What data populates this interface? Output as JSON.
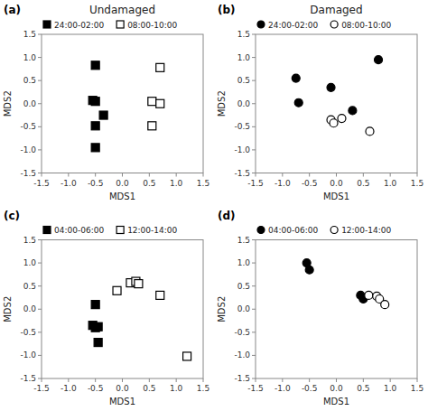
{
  "chart_data": [
    {
      "type": "scatter",
      "title": "Undamaged",
      "annotations": [
        "(a)"
      ],
      "xlabel": "MDS1",
      "ylabel": "MDS2",
      "xlim": [
        -1.5,
        1.5
      ],
      "ylim": [
        -1.5,
        1.5
      ],
      "xticks": [
        -1.5,
        {
          "value": -1.0,
          "label": "-1.0"
        },
        -0.5,
        {
          "value": 0.0,
          "label": "0.0"
        },
        0.5,
        {
          "value": 1.0,
          "label": "1.0"
        },
        1.5
      ],
      "yticks": [
        -1.5,
        {
          "value": -1.0,
          "label": "-1.0"
        },
        -0.5,
        {
          "value": 0.0,
          "label": "0.0"
        },
        0.5,
        {
          "value": 1.0,
          "label": "1.0"
        },
        1.5
      ],
      "grid": false,
      "legend": "top",
      "series": [
        {
          "name": "24:00-02:00",
          "color": "#000000",
          "marker": "square",
          "x": [
            -0.5,
            -0.55,
            -0.5,
            -0.35,
            -0.5,
            -0.5
          ],
          "values": [
            0.83,
            0.07,
            0.05,
            -0.25,
            -0.48,
            -0.95
          ]
        },
        {
          "name": "08:00-10:00",
          "color": "#ffffff",
          "marker": "square",
          "x": [
            0.7,
            0.55,
            0.7,
            0.55
          ],
          "values": [
            0.78,
            0.05,
            0.0,
            -0.48
          ]
        }
      ]
    },
    {
      "type": "scatter",
      "title": "Damaged",
      "annotations": [
        "(b)"
      ],
      "xlabel": "MDS1",
      "ylabel": "MDS2",
      "xlim": [
        -1.5,
        1.5
      ],
      "ylim": [
        -1.5,
        1.5
      ],
      "xticks": [
        -1.5,
        {
          "value": -1.0,
          "label": "-1.0"
        },
        -0.5,
        {
          "value": 0.0,
          "label": "0.0"
        },
        0.5,
        {
          "value": 1.0,
          "label": "1.0"
        },
        1.5
      ],
      "yticks": [
        -1.5,
        {
          "value": -1.0,
          "label": "-1.0"
        },
        -0.5,
        {
          "value": 0.0,
          "label": "0.0"
        },
        0.5,
        {
          "value": 1.0,
          "label": "1.0"
        },
        1.5
      ],
      "grid": false,
      "legend": "top",
      "series": [
        {
          "name": "24:00-02:00",
          "color": "#000000",
          "marker": "circle",
          "x": [
            -0.75,
            -0.7,
            -0.1,
            0.3,
            0.78
          ],
          "values": [
            0.55,
            0.02,
            0.35,
            -0.15,
            0.95
          ]
        },
        {
          "name": "08:00-10:00",
          "color": "#ffffff",
          "marker": "circle",
          "x": [
            -0.1,
            -0.05,
            0.1,
            0.62
          ],
          "values": [
            -0.35,
            -0.42,
            -0.32,
            -0.6
          ]
        }
      ]
    },
    {
      "type": "scatter",
      "annotations": [
        "(c)"
      ],
      "xlabel": "MDS1",
      "ylabel": "MDS2",
      "xlim": [
        -1.5,
        1.5
      ],
      "ylim": [
        -1.5,
        1.5
      ],
      "xticks": [
        -1.5,
        {
          "value": -1.0,
          "label": "-1.0"
        },
        -0.5,
        {
          "value": 0.0,
          "label": "0.0"
        },
        0.5,
        {
          "value": 1.0,
          "label": "1.0"
        },
        1.5
      ],
      "yticks": [
        -1.5,
        {
          "value": -1.0,
          "label": "-1.0"
        },
        -0.5,
        {
          "value": 0.0,
          "label": "0.0"
        },
        0.5,
        {
          "value": 1.0,
          "label": "1.0"
        },
        1.5
      ],
      "grid": false,
      "legend": "top",
      "series": [
        {
          "name": "04:00-06:00",
          "color": "#000000",
          "marker": "square",
          "x": [
            -0.5,
            -0.55,
            -0.5,
            -0.45,
            -0.45
          ],
          "values": [
            0.1,
            -0.35,
            -0.4,
            -0.38,
            -0.72
          ]
        },
        {
          "name": "12:00-14:00",
          "color": "#ffffff",
          "marker": "square",
          "x": [
            -0.1,
            0.15,
            0.25,
            0.3,
            0.7,
            1.2
          ],
          "values": [
            0.4,
            0.57,
            0.6,
            0.55,
            0.3,
            -1.02
          ]
        }
      ]
    },
    {
      "type": "scatter",
      "annotations": [
        "(d)"
      ],
      "xlabel": "MDS1",
      "ylabel": "MDS2",
      "xlim": [
        -1.5,
        1.5
      ],
      "ylim": [
        -1.5,
        1.5
      ],
      "xticks": [
        -1.5,
        {
          "value": -1.0,
          "label": "-1.0"
        },
        -0.5,
        {
          "value": 0.0,
          "label": "0.0"
        },
        0.5,
        {
          "value": 1.0,
          "label": "1.0"
        },
        1.5
      ],
      "yticks": [
        -1.5,
        {
          "value": -1.0,
          "label": "-1.0"
        },
        -0.5,
        {
          "value": 0.0,
          "label": "0.0"
        },
        0.5,
        {
          "value": 1.0,
          "label": "1.0"
        },
        1.5
      ],
      "grid": false,
      "legend": "top",
      "series": [
        {
          "name": "04:00-06:00",
          "color": "#000000",
          "marker": "circle",
          "x": [
            -0.55,
            -0.5,
            0.45,
            0.5
          ],
          "values": [
            1.0,
            0.85,
            0.3,
            0.22
          ]
        },
        {
          "name": "12:00-14:00",
          "color": "#ffffff",
          "marker": "circle",
          "x": [
            0.6,
            0.75,
            0.8,
            0.9
          ],
          "values": [
            0.3,
            0.28,
            0.22,
            0.1
          ]
        }
      ]
    }
  ]
}
